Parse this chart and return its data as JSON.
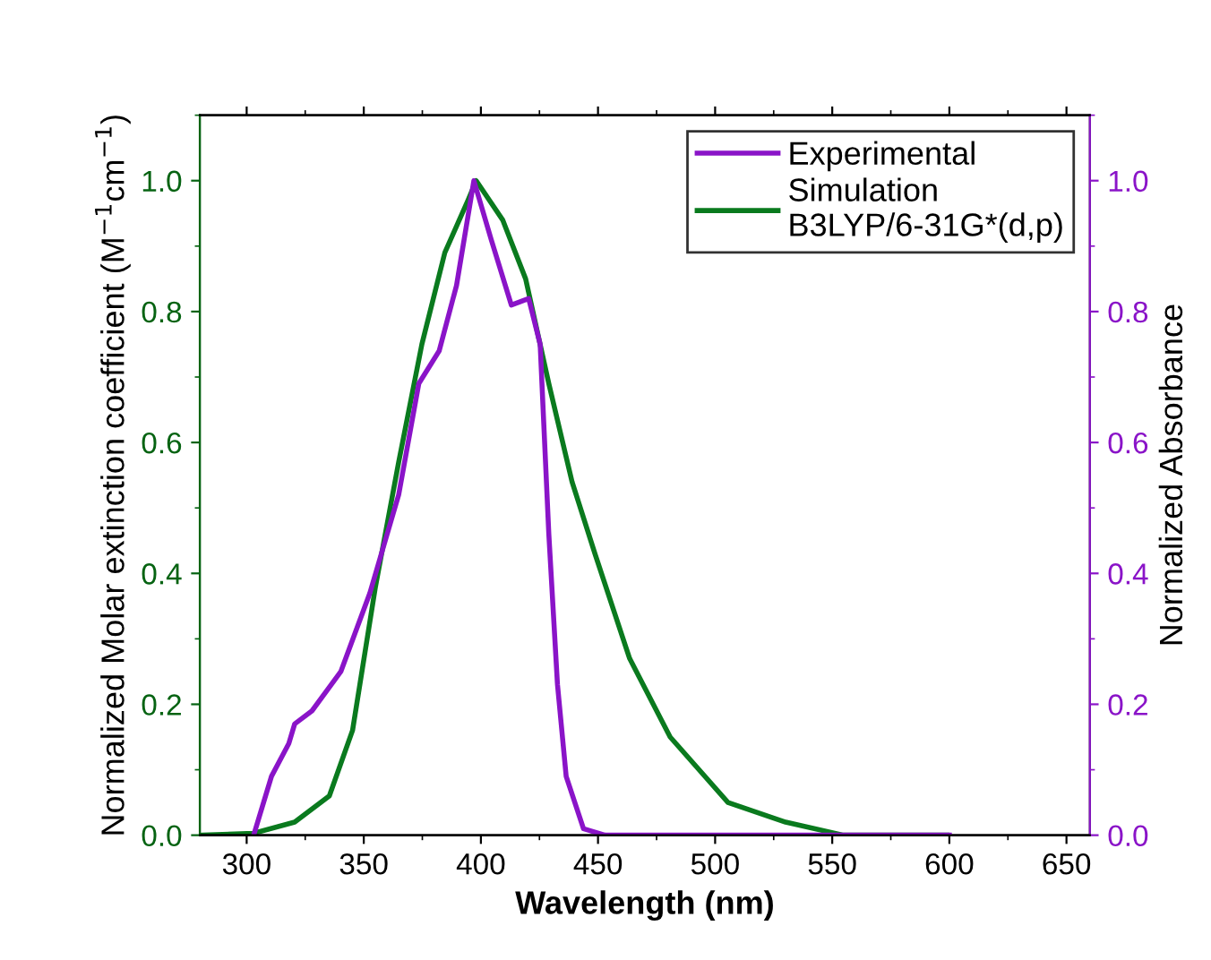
{
  "chart_data": {
    "type": "line",
    "xlabel": "Wavelength (nm)",
    "ylabel": "Normalized Molar extinction coefficient (M$^{−1}$cm$^{−1}$)",
    "y2label": "Normalized Absorbance",
    "xlim": [
      280,
      660
    ],
    "xticks": [
      300,
      350,
      400,
      450,
      500,
      550,
      600,
      650
    ],
    "ylim": [
      0,
      1.1
    ],
    "yticks": [
      {
        "value": 0,
        "label": "0.0"
      },
      0.2,
      0.4,
      0.6,
      0.8,
      {
        "value": 1,
        "label": "1.0"
      }
    ],
    "y2lim": [
      0,
      1.1
    ],
    "y2ticks": [
      {
        "value": 0,
        "label": "0.0"
      },
      0.2,
      0.4,
      0.6,
      0.8,
      {
        "value": 1,
        "label": "1.0"
      }
    ],
    "grid": false,
    "legend": "top right",
    "line_style": "solid",
    "marker": "none",
    "series": [
      {
        "name": "Experimental",
        "color": "#8a14c8",
        "axis": "y2",
        "x": [
          303,
          310.6,
          318,
          320.5,
          327.9,
          340.2,
          352.6,
          364.9,
          373.5,
          382.2,
          389.6,
          397,
          404.4,
          413,
          420.4,
          425.3,
          429,
          432.7,
          436.4,
          443.8,
          453,
          600
        ],
        "values": [
          0,
          0.09,
          0.14,
          0.17,
          0.19,
          0.25,
          0.37,
          0.52,
          0.69,
          0.74,
          0.84,
          1.0,
          0.91,
          0.81,
          0.82,
          0.75,
          0.46,
          0.23,
          0.09,
          0.01,
          0,
          0
        ]
      },
      {
        "name": "Simulation\nB3LYP/6-31G*(d,p)",
        "color": "#0a7a1e",
        "x": [
          281,
          303,
          320.5,
          335.3,
          345.2,
          355,
          364.9,
          374.8,
          384.6,
          394.5,
          398,
          409.3,
          419.1,
          429,
          438.9,
          448.7,
          463.5,
          480.8,
          505.5,
          530.1,
          554.8,
          599
        ],
        "values": [
          0,
          0.003,
          0.02,
          0.06,
          0.16,
          0.38,
          0.57,
          0.75,
          0.89,
          0.97,
          1.0,
          0.94,
          0.85,
          0.69,
          0.54,
          0.43,
          0.27,
          0.15,
          0.05,
          0.02,
          0,
          0
        ]
      }
    ]
  }
}
